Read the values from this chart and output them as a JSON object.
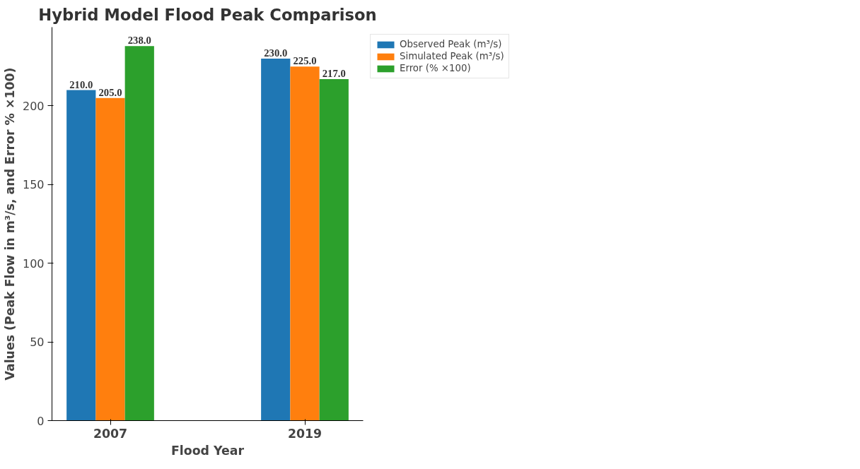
{
  "chart_data": {
    "type": "bar",
    "title": "Hybrid Model Flood Peak Comparison",
    "xlabel": "Flood Year",
    "ylabel": "Values (Peak Flow in m³/s, and Error % ×100)",
    "categories": [
      "2007",
      "2019"
    ],
    "series": [
      {
        "name": "Observed Peak (m³/s)",
        "color": "#1f77b4",
        "values": [
          210,
          230
        ],
        "value_labels": [
          "210.0",
          "230.0"
        ]
      },
      {
        "name": "Simulated Peak (m³/s)",
        "color": "#ff7f0e",
        "values": [
          205,
          225
        ],
        "value_labels": [
          "205.0",
          "225.0"
        ]
      },
      {
        "name": "Error (% ×100)",
        "color": "#2ca02c",
        "values": [
          238,
          217
        ],
        "value_labels": [
          "238.0",
          "217.0"
        ]
      }
    ],
    "ylim": [
      0,
      250
    ],
    "yticks": [
      0,
      50,
      100,
      150,
      200
    ],
    "grid": false,
    "legend": "top right"
  }
}
